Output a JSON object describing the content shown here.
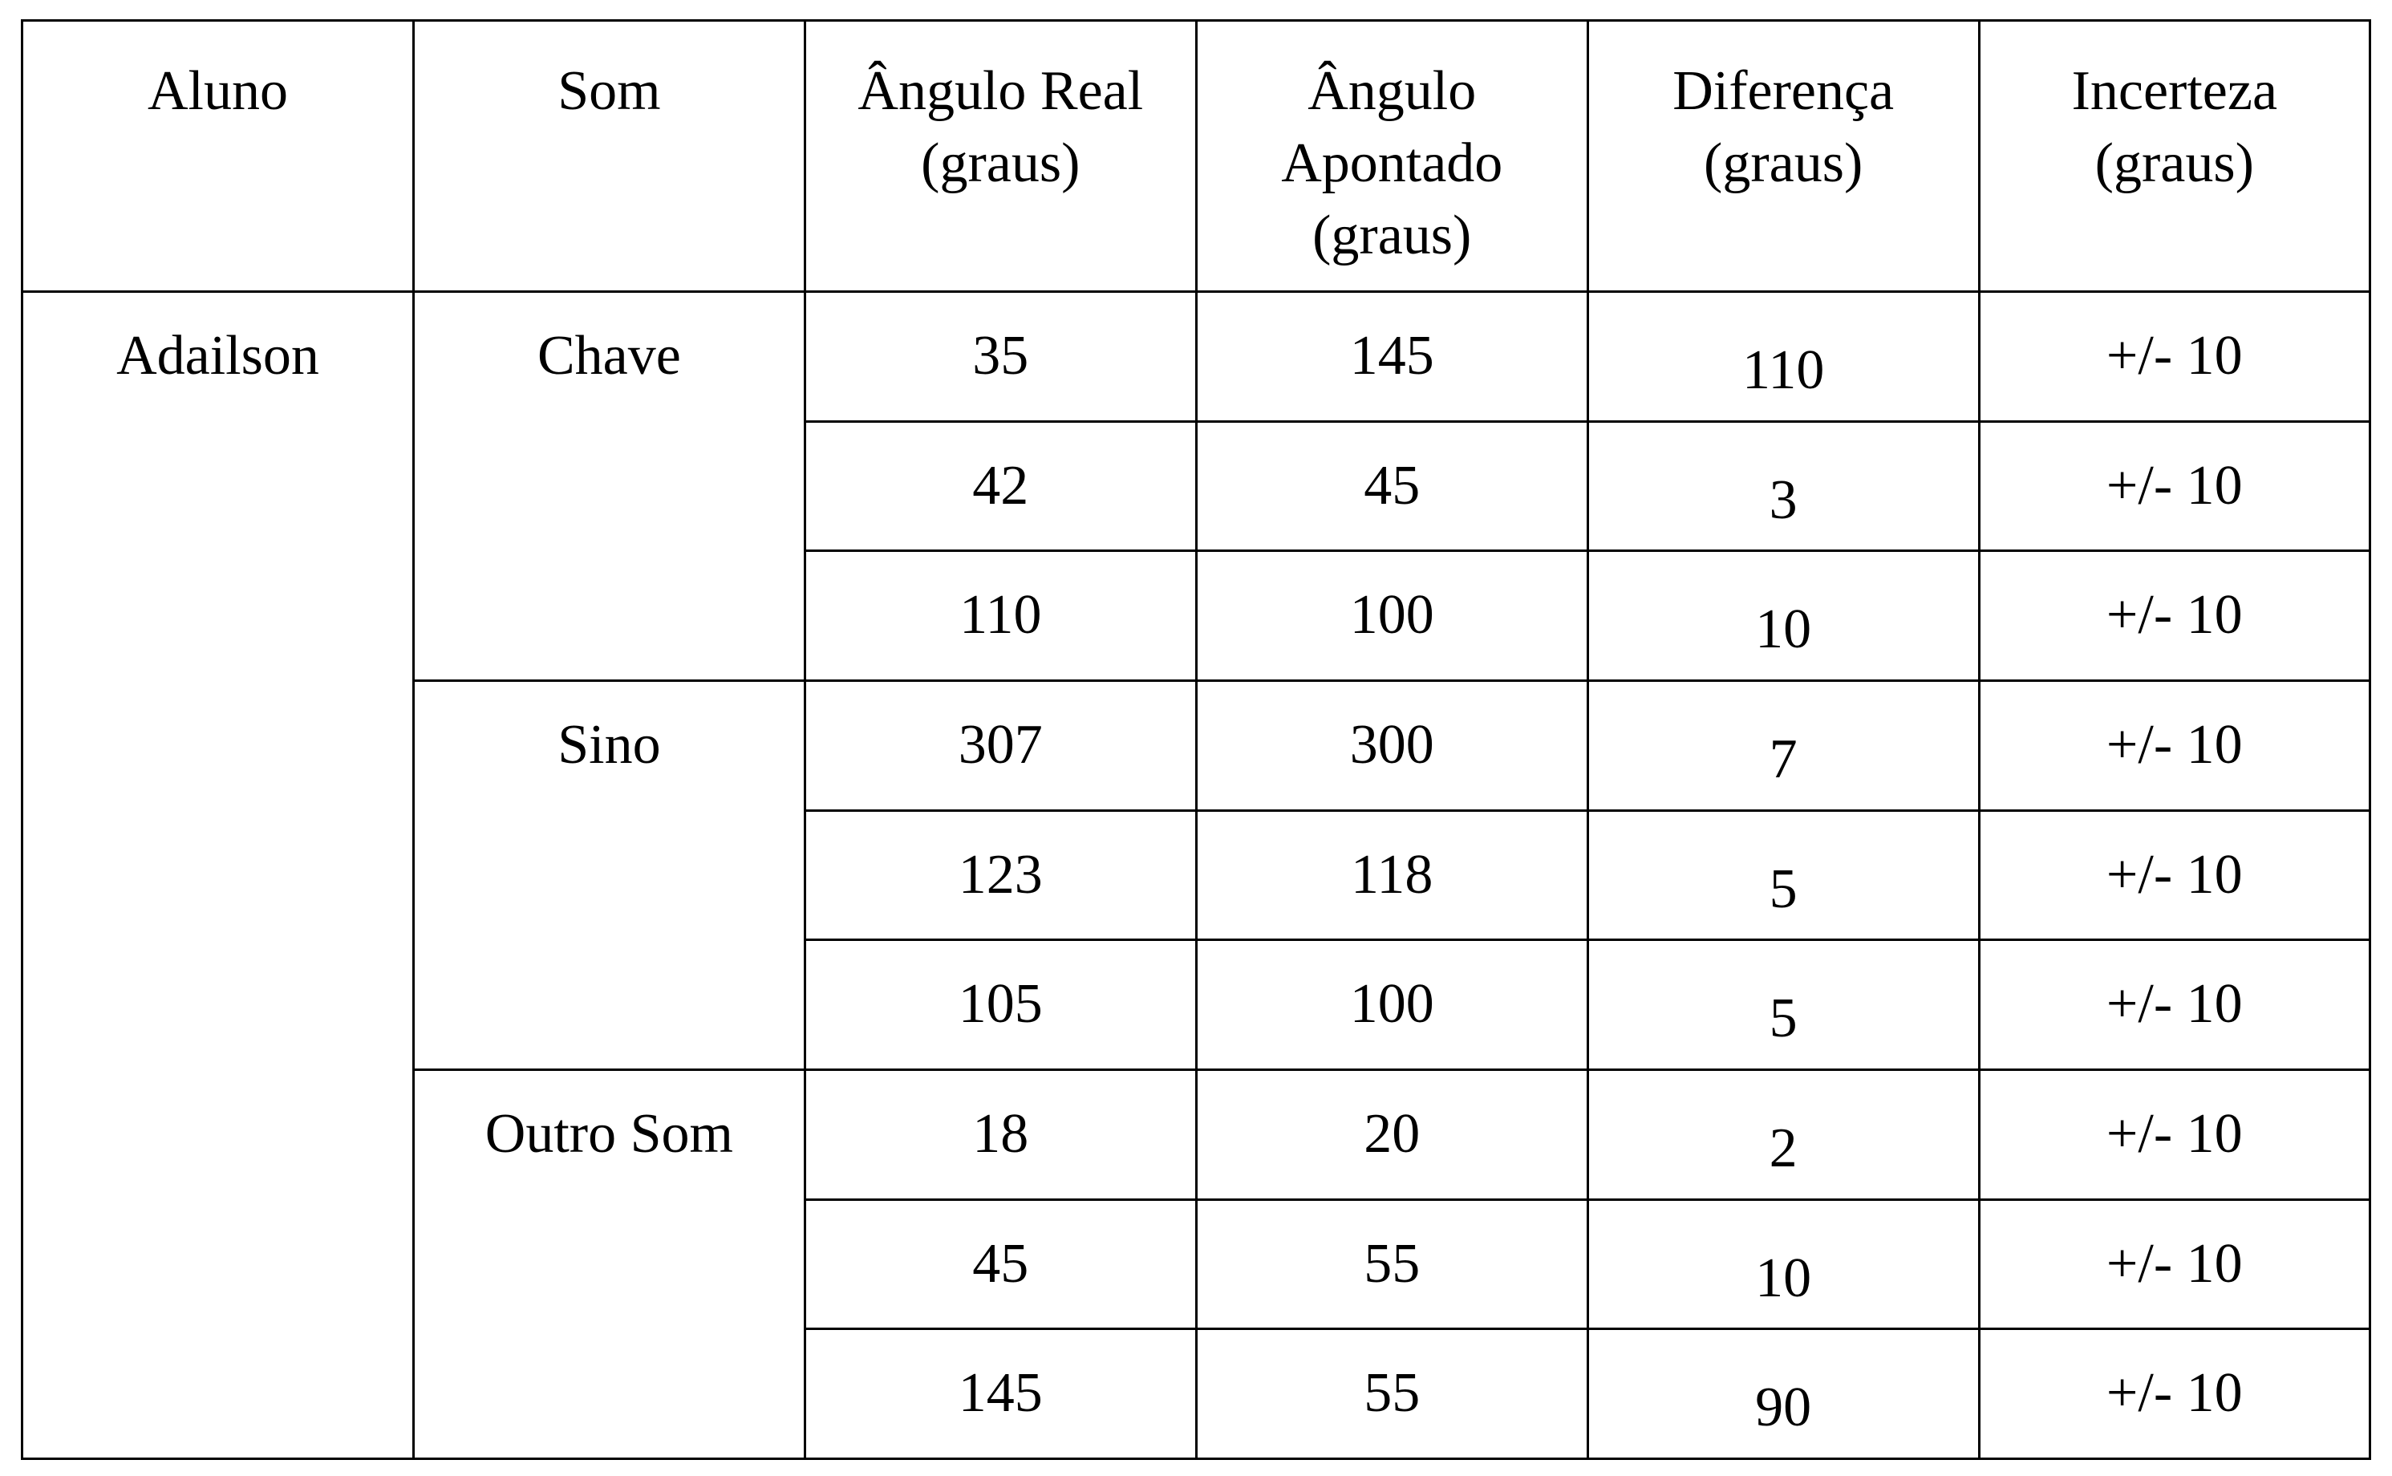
{
  "table": {
    "headers": [
      [
        "Aluno"
      ],
      [
        "Som"
      ],
      [
        "Ângulo Real",
        "(graus)"
      ],
      [
        "Ângulo",
        "Apontado",
        "(graus)"
      ],
      [
        "Diferença",
        "(graus)"
      ],
      [
        "Incerteza",
        "(graus)"
      ]
    ],
    "student": "Adailson",
    "groups": [
      {
        "sound": "Chave",
        "rows": [
          {
            "real": "35",
            "pointed": "145",
            "diff": "110",
            "uncertainty": "+/- 10"
          },
          {
            "real": "42",
            "pointed": "45",
            "diff": "3",
            "uncertainty": "+/- 10"
          },
          {
            "real": "110",
            "pointed": "100",
            "diff": "10",
            "uncertainty": "+/- 10"
          }
        ]
      },
      {
        "sound": "Sino",
        "rows": [
          {
            "real": "307",
            "pointed": "300",
            "diff": "7",
            "uncertainty": "+/- 10"
          },
          {
            "real": "123",
            "pointed": "118",
            "diff": "5",
            "uncertainty": "+/- 10"
          },
          {
            "real": "105",
            "pointed": "100",
            "diff": "5",
            "uncertainty": "+/- 10"
          }
        ]
      },
      {
        "sound": "Outro Som",
        "rows": [
          {
            "real": "18",
            "pointed": "20",
            "diff": "2",
            "uncertainty": "+/- 10"
          },
          {
            "real": "45",
            "pointed": "55",
            "diff": "10",
            "uncertainty": "+/- 10"
          },
          {
            "real": "145",
            "pointed": "55",
            "diff": "90",
            "uncertainty": "+/- 10"
          }
        ]
      }
    ]
  }
}
